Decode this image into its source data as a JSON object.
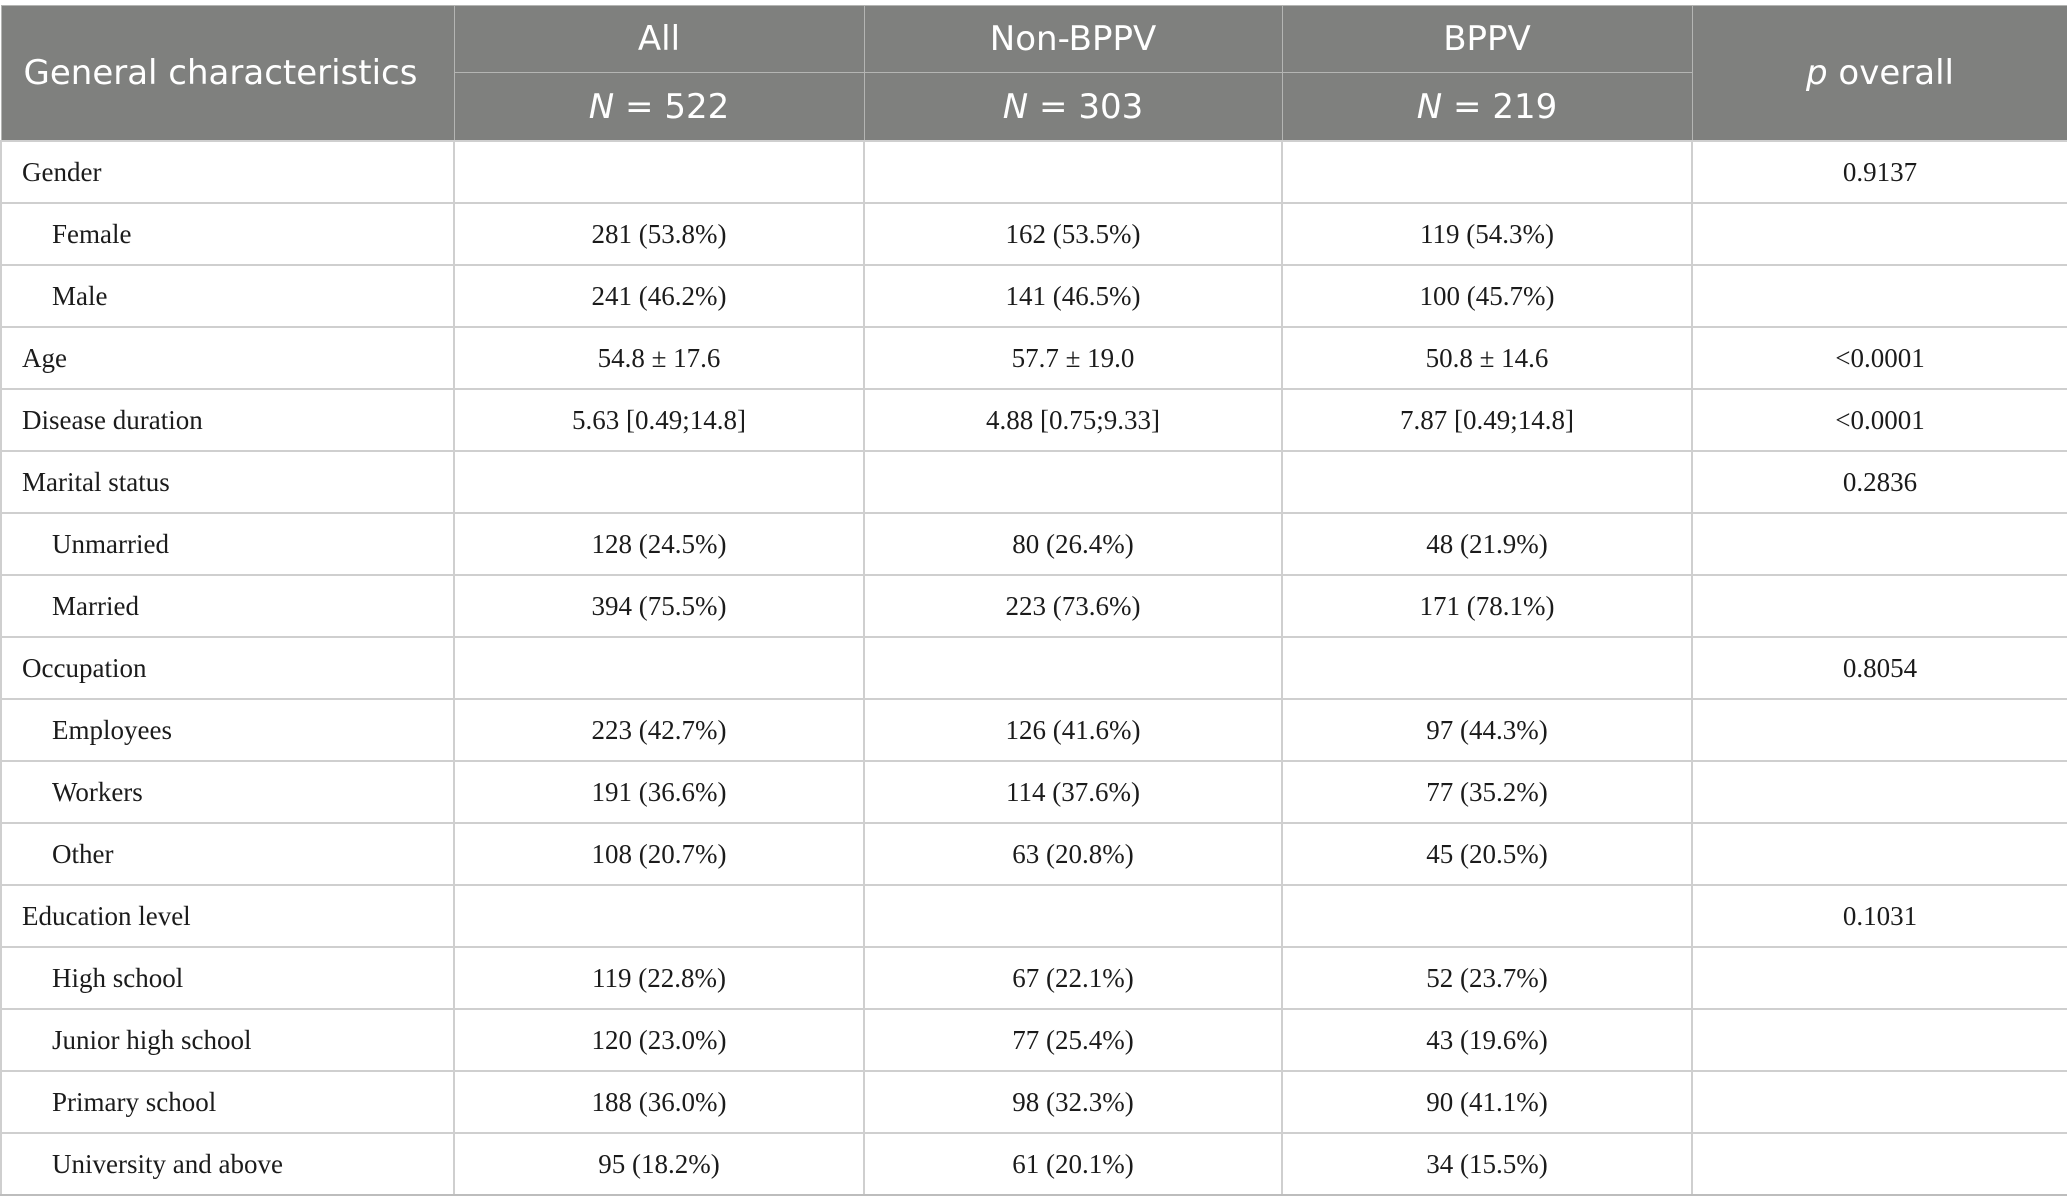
{
  "table": {
    "header": {
      "characteristics": "General characteristics",
      "all": "All",
      "non_bppv": "Non-BPPV",
      "bppv": "BPPV",
      "p_italic": "p",
      "p_rest": " overall",
      "n_all_italic": "N",
      "n_all_rest": " = 522",
      "n_non_italic": "N",
      "n_non_rest": " = 303",
      "n_bppv_italic": "N",
      "n_bppv_rest": " = 219"
    },
    "rows": [
      {
        "label": "Gender",
        "all": "",
        "non_bppv": "",
        "bppv": "",
        "p": "0.9137"
      },
      {
        "label": "Female",
        "all": "281 (53.8%)",
        "non_bppv": "162 (53.5%)",
        "bppv": "119 (54.3%)",
        "p": ""
      },
      {
        "label": "Male",
        "all": "241 (46.2%)",
        "non_bppv": "141 (46.5%)",
        "bppv": "100 (45.7%)",
        "p": ""
      },
      {
        "label": "Age",
        "all": "54.8 ± 17.6",
        "non_bppv": "57.7 ± 19.0",
        "bppv": "50.8 ± 14.6",
        "p": "<0.0001"
      },
      {
        "label": "Disease duration",
        "all": "5.63 [0.49;14.8]",
        "non_bppv": "4.88 [0.75;9.33]",
        "bppv": "7.87 [0.49;14.8]",
        "p": "<0.0001"
      },
      {
        "label": "Marital status",
        "all": "",
        "non_bppv": "",
        "bppv": "",
        "p": "0.2836"
      },
      {
        "label": "Unmarried",
        "all": "128 (24.5%)",
        "non_bppv": "80 (26.4%)",
        "bppv": "48 (21.9%)",
        "p": ""
      },
      {
        "label": "Married",
        "all": "394 (75.5%)",
        "non_bppv": "223 (73.6%)",
        "bppv": "171 (78.1%)",
        "p": ""
      },
      {
        "label": "Occupation",
        "all": "",
        "non_bppv": "",
        "bppv": "",
        "p": "0.8054"
      },
      {
        "label": "Employees",
        "all": "223 (42.7%)",
        "non_bppv": "126 (41.6%)",
        "bppv": "97 (44.3%)",
        "p": ""
      },
      {
        "label": "Workers",
        "all": "191 (36.6%)",
        "non_bppv": "114 (37.6%)",
        "bppv": "77 (35.2%)",
        "p": ""
      },
      {
        "label": "Other",
        "all": "108 (20.7%)",
        "non_bppv": "63 (20.8%)",
        "bppv": "45 (20.5%)",
        "p": ""
      },
      {
        "label": "Education level",
        "all": "",
        "non_bppv": "",
        "bppv": "",
        "p": "0.1031"
      },
      {
        "label": "High school",
        "all": "119 (22.8%)",
        "non_bppv": "67 (22.1%)",
        "bppv": "52 (23.7%)",
        "p": ""
      },
      {
        "label": "Junior high school",
        "all": "120 (23.0%)",
        "non_bppv": "77 (25.4%)",
        "bppv": "43 (19.6%)",
        "p": ""
      },
      {
        "label": "Primary school",
        "all": "188 (36.0%)",
        "non_bppv": "98 (32.3%)",
        "bppv": "90 (41.1%)",
        "p": ""
      },
      {
        "label": "University and above",
        "all": "95 (18.2%)",
        "non_bppv": "61 (20.1%)",
        "bppv": "34 (15.5%)",
        "p": ""
      }
    ]
  },
  "colors": {
    "header_bg": "#7f807e",
    "header_text": "#ffffff",
    "grid": "#cfcfcf",
    "body_text": "#1b1b1b"
  }
}
